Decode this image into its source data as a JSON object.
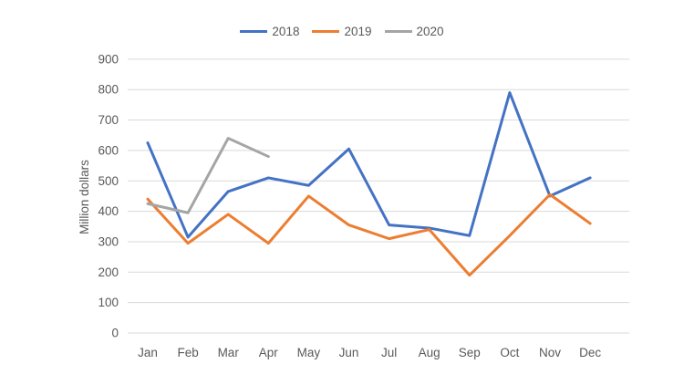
{
  "chart_data": {
    "type": "line",
    "title": "",
    "xlabel": "",
    "ylabel": "Million dollars",
    "categories": [
      "Jan",
      "Feb",
      "Mar",
      "Apr",
      "May",
      "Jun",
      "Jul",
      "Aug",
      "Sep",
      "Oct",
      "Nov",
      "Dec"
    ],
    "series": [
      {
        "name": "2018",
        "color": "#4472C4",
        "values": [
          625,
          315,
          465,
          510,
          485,
          605,
          355,
          345,
          320,
          790,
          450,
          510
        ]
      },
      {
        "name": "2019",
        "color": "#ED7D31",
        "values": [
          440,
          295,
          390,
          295,
          450,
          355,
          310,
          340,
          190,
          320,
          455,
          360
        ]
      },
      {
        "name": "2020",
        "color": "#A5A5A5",
        "values": [
          425,
          395,
          640,
          580,
          null,
          null,
          null,
          null,
          null,
          null,
          null,
          null
        ]
      }
    ],
    "ylim": [
      0,
      900
    ],
    "ytick_step": 100,
    "ytick_labels": [
      "0",
      "100",
      "200",
      "300",
      "400",
      "500",
      "600",
      "700",
      "800",
      "900"
    ],
    "grid": true,
    "legend_position": "top",
    "legend_labels": [
      "2018",
      "2019",
      "2020"
    ],
    "axis_text_color": "#595959",
    "gridline_color": "#D9D9D9",
    "background_color": "#FFFFFF"
  }
}
